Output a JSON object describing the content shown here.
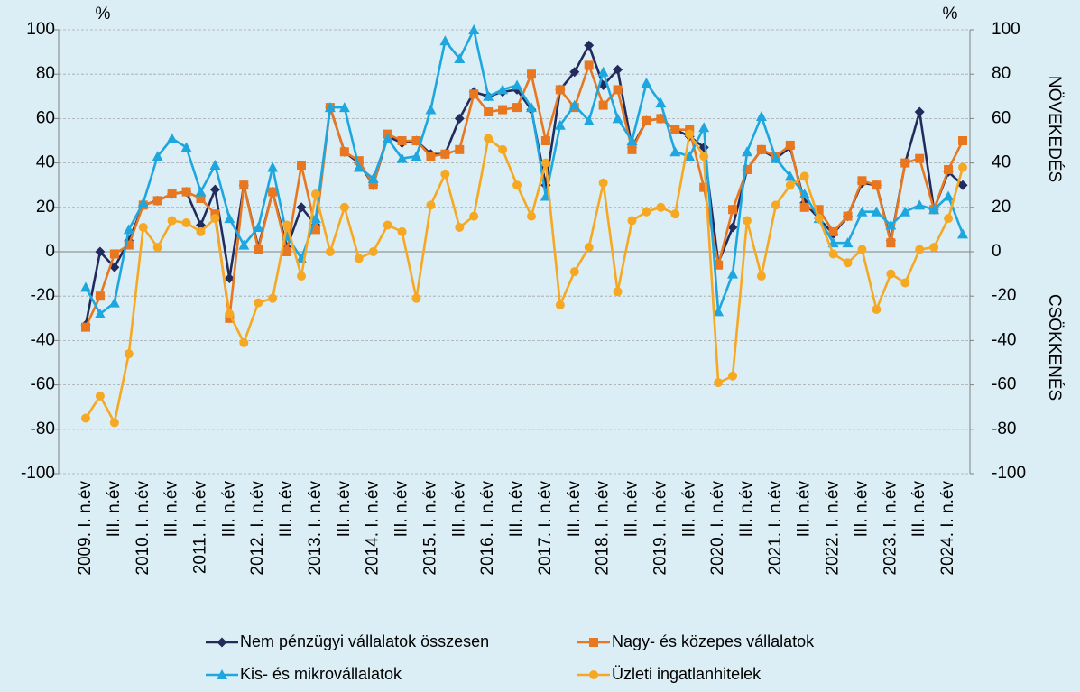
{
  "chart_data": {
    "type": "line",
    "ylabel": "%",
    "y2label": "%",
    "growth_label": "NÖVEKEDÉS",
    "decline_label": "CSÖKKENÉS",
    "categories": [
      "2009. I. n.év",
      null,
      "III. n.év",
      null,
      "2010. I. n.év",
      null,
      "III. n.év",
      null,
      "2011. I. n.év",
      null,
      "III. n.év",
      null,
      "2012. I. n.év",
      null,
      "III. n.év",
      null,
      "2013. I. n.év",
      null,
      "III. n.év",
      null,
      "2014. I. n.év",
      null,
      "III. n.év",
      null,
      "2015. I. n.év",
      null,
      "III. n.év",
      null,
      "2016. I. n.év",
      null,
      "III. n.év",
      null,
      "2017. I. n.év",
      null,
      "III. n.év",
      null,
      "2018. I. n.év",
      null,
      "III. n.év",
      null,
      "2019. I. n.év",
      null,
      "III. n.év",
      null,
      "2020. I. n.év",
      null,
      "III. n.év",
      null,
      "2021. I. n.év",
      null,
      "III. n.év",
      null,
      "2022. I. n.év",
      null,
      "III. n.év",
      null,
      "2023. I. n.év",
      null,
      "III. n.év",
      null,
      "2024. I. n.év",
      null
    ],
    "series": [
      {
        "name": "Nem pénzügyi vállalatok összesen",
        "color": "#232a5c",
        "marker": "diamond",
        "values": [
          -33,
          0,
          -7,
          5,
          21,
          23,
          26,
          27,
          12,
          28,
          -12,
          30,
          2,
          27,
          2,
          20,
          12,
          65,
          45,
          40,
          30,
          52,
          49,
          50,
          44,
          44,
          60,
          72,
          70,
          72,
          73,
          64,
          30,
          73,
          81,
          93,
          75,
          82,
          47,
          59,
          60,
          55,
          52,
          47,
          -5,
          11,
          37,
          46,
          42,
          47,
          22,
          15,
          8,
          16,
          31,
          30,
          5,
          40,
          63,
          19,
          36,
          30
        ]
      },
      {
        "name": "Nagy- és közepes vállalatok",
        "color": "#e8771f",
        "marker": "square",
        "values": [
          -34,
          -20,
          -1,
          3,
          21,
          23,
          26,
          27,
          24,
          17,
          -30,
          30,
          1,
          27,
          0,
          39,
          10,
          65,
          45,
          41,
          30,
          53,
          50,
          50,
          43,
          44,
          46,
          71,
          63,
          64,
          65,
          80,
          50,
          73,
          65,
          84,
          66,
          73,
          46,
          59,
          60,
          55,
          55,
          29,
          -6,
          19,
          37,
          46,
          43,
          48,
          20,
          19,
          9,
          16,
          32,
          30,
          4,
          40,
          42,
          19,
          37,
          50
        ]
      },
      {
        "name": "Kis- és mikrovállalatok",
        "color": "#1ea7df",
        "marker": "triangle",
        "values": [
          -16,
          -28,
          -23,
          10,
          22,
          43,
          51,
          47,
          27,
          39,
          15,
          3,
          11,
          38,
          7,
          -3,
          15,
          65,
          65,
          38,
          33,
          51,
          42,
          43,
          64,
          95,
          87,
          100,
          70,
          73,
          75,
          65,
          25,
          57,
          66,
          59,
          81,
          60,
          50,
          76,
          67,
          45,
          43,
          56,
          -27,
          -10,
          45,
          61,
          42,
          34,
          26,
          15,
          4,
          4,
          18,
          18,
          12,
          18,
          21,
          19,
          25,
          8
        ]
      },
      {
        "name": "Üzleti ingatlanhitelek",
        "color": "#f7a823",
        "marker": "circle",
        "values": [
          -75,
          -65,
          -77,
          -46,
          11,
          2,
          14,
          13,
          9,
          15,
          -28,
          -41,
          -23,
          -21,
          12,
          -11,
          26,
          0,
          20,
          -3,
          0,
          12,
          9,
          -21,
          21,
          35,
          11,
          16,
          51,
          46,
          30,
          16,
          40,
          -24,
          -9,
          2,
          31,
          -18,
          14,
          18,
          20,
          17,
          53,
          43,
          -59,
          -56,
          14,
          -11,
          21,
          30,
          34,
          15,
          -1,
          -5,
          1,
          -26,
          -10,
          -14,
          1,
          2,
          15,
          38
        ]
      }
    ],
    "ylim": [
      -100,
      100
    ],
    "yticks": [
      -100,
      -80,
      -60,
      -40,
      -20,
      0,
      20,
      40,
      60,
      80,
      100
    ],
    "y2lim": [
      -100,
      100
    ],
    "y2ticks": [
      -100,
      -80,
      -60,
      -40,
      -20,
      0,
      20,
      40,
      60,
      80,
      100
    ],
    "grid": true
  }
}
